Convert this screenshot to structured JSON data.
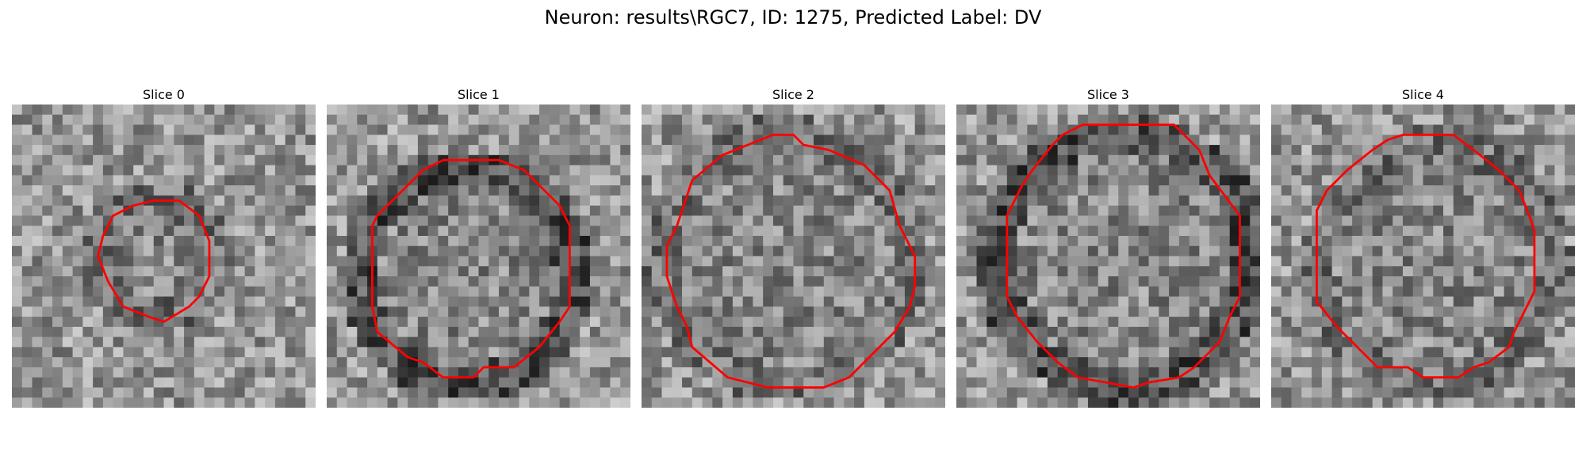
{
  "figure": {
    "title": "Neuron: results\\RGC7, ID: 1275, Predicted Label: DV",
    "grid_size": 30,
    "contour_color": "#ff0000",
    "colormap": "gray",
    "panels": [
      {
        "title": "Slice 0",
        "seed": 11,
        "ring_dark": false,
        "contour": [
          [
            14,
            9.5
          ],
          [
            16.5,
            9.5
          ],
          [
            18.5,
            11
          ],
          [
            19.5,
            13.5
          ],
          [
            19.5,
            17
          ],
          [
            18.5,
            19
          ],
          [
            17.5,
            20
          ],
          [
            15,
            21.5
          ],
          [
            13.5,
            21
          ],
          [
            11,
            20
          ],
          [
            9.5,
            17.5
          ],
          [
            8.5,
            15
          ],
          [
            9,
            13
          ],
          [
            10,
            11
          ],
          [
            12,
            10
          ]
        ]
      },
      {
        "title": "Slice 1",
        "seed": 23,
        "ring_dark": true,
        "contour": [
          [
            11.5,
            5.5
          ],
          [
            17,
            5.5
          ],
          [
            19.5,
            6.5
          ],
          [
            23,
            10
          ],
          [
            24,
            12
          ],
          [
            24,
            20
          ],
          [
            23,
            21.5
          ],
          [
            21,
            24
          ],
          [
            18.5,
            26
          ],
          [
            15.5,
            26
          ],
          [
            14.5,
            27
          ],
          [
            11.5,
            27
          ],
          [
            9.5,
            25.5
          ],
          [
            8,
            25
          ],
          [
            5,
            22.5
          ],
          [
            4.5,
            20
          ],
          [
            4.5,
            12
          ],
          [
            5,
            11
          ],
          [
            8,
            8
          ],
          [
            9.5,
            6.5
          ]
        ]
      },
      {
        "title": "Slice 2",
        "seed": 37,
        "ring_dark": false,
        "contour": [
          [
            13,
            3
          ],
          [
            15,
            3
          ],
          [
            16,
            4
          ],
          [
            18.5,
            4.5
          ],
          [
            22,
            6
          ],
          [
            24.5,
            8.5
          ],
          [
            25.5,
            12
          ],
          [
            27,
            15
          ],
          [
            27,
            18
          ],
          [
            26.5,
            20
          ],
          [
            25,
            22.5
          ],
          [
            23.5,
            24
          ],
          [
            20.5,
            27
          ],
          [
            18,
            28
          ],
          [
            15,
            28
          ],
          [
            12.5,
            28
          ],
          [
            8.5,
            27
          ],
          [
            5,
            24
          ],
          [
            4.5,
            22
          ],
          [
            3.5,
            20
          ],
          [
            2.5,
            17
          ],
          [
            2.5,
            14
          ],
          [
            3.5,
            12
          ],
          [
            4.5,
            9
          ],
          [
            5,
            7.5
          ],
          [
            8,
            5
          ],
          [
            10.5,
            4
          ]
        ]
      },
      {
        "title": "Slice 3",
        "seed": 51,
        "ring_dark": true,
        "contour": [
          [
            12.5,
            2
          ],
          [
            21.5,
            2
          ],
          [
            24,
            4.5
          ],
          [
            25,
            7
          ],
          [
            26.5,
            9
          ],
          [
            28,
            11
          ],
          [
            28,
            19
          ],
          [
            27,
            21
          ],
          [
            26,
            23.5
          ],
          [
            23.5,
            26
          ],
          [
            22,
            27
          ],
          [
            19,
            27.5
          ],
          [
            17.5,
            28
          ],
          [
            12,
            27
          ],
          [
            10,
            25.5
          ],
          [
            8,
            23.5
          ],
          [
            6,
            21
          ],
          [
            5,
            19
          ],
          [
            5,
            11
          ],
          [
            6.5,
            8
          ],
          [
            7.5,
            6.5
          ],
          [
            9.5,
            4
          ],
          [
            10.5,
            3
          ]
        ]
      },
      {
        "title": "Slice 4",
        "seed": 67,
        "ring_dark": false,
        "contour": [
          [
            13,
            3
          ],
          [
            18,
            3
          ],
          [
            20,
            4.5
          ],
          [
            22.5,
            6.5
          ],
          [
            24.5,
            8.5
          ],
          [
            25.5,
            11
          ],
          [
            26,
            12.5
          ],
          [
            26,
            18.5
          ],
          [
            25,
            20.5
          ],
          [
            24,
            22.5
          ],
          [
            23.5,
            24
          ],
          [
            21.5,
            25.5
          ],
          [
            20,
            26
          ],
          [
            18.5,
            27
          ],
          [
            15,
            27
          ],
          [
            13.5,
            26
          ],
          [
            10.5,
            26
          ],
          [
            8.5,
            24
          ],
          [
            6.5,
            22
          ],
          [
            4.5,
            19.5
          ],
          [
            4.5,
            10.5
          ],
          [
            5.5,
            8.5
          ],
          [
            7.5,
            6.5
          ],
          [
            10,
            4.5
          ],
          [
            11.5,
            3.5
          ]
        ]
      }
    ]
  }
}
